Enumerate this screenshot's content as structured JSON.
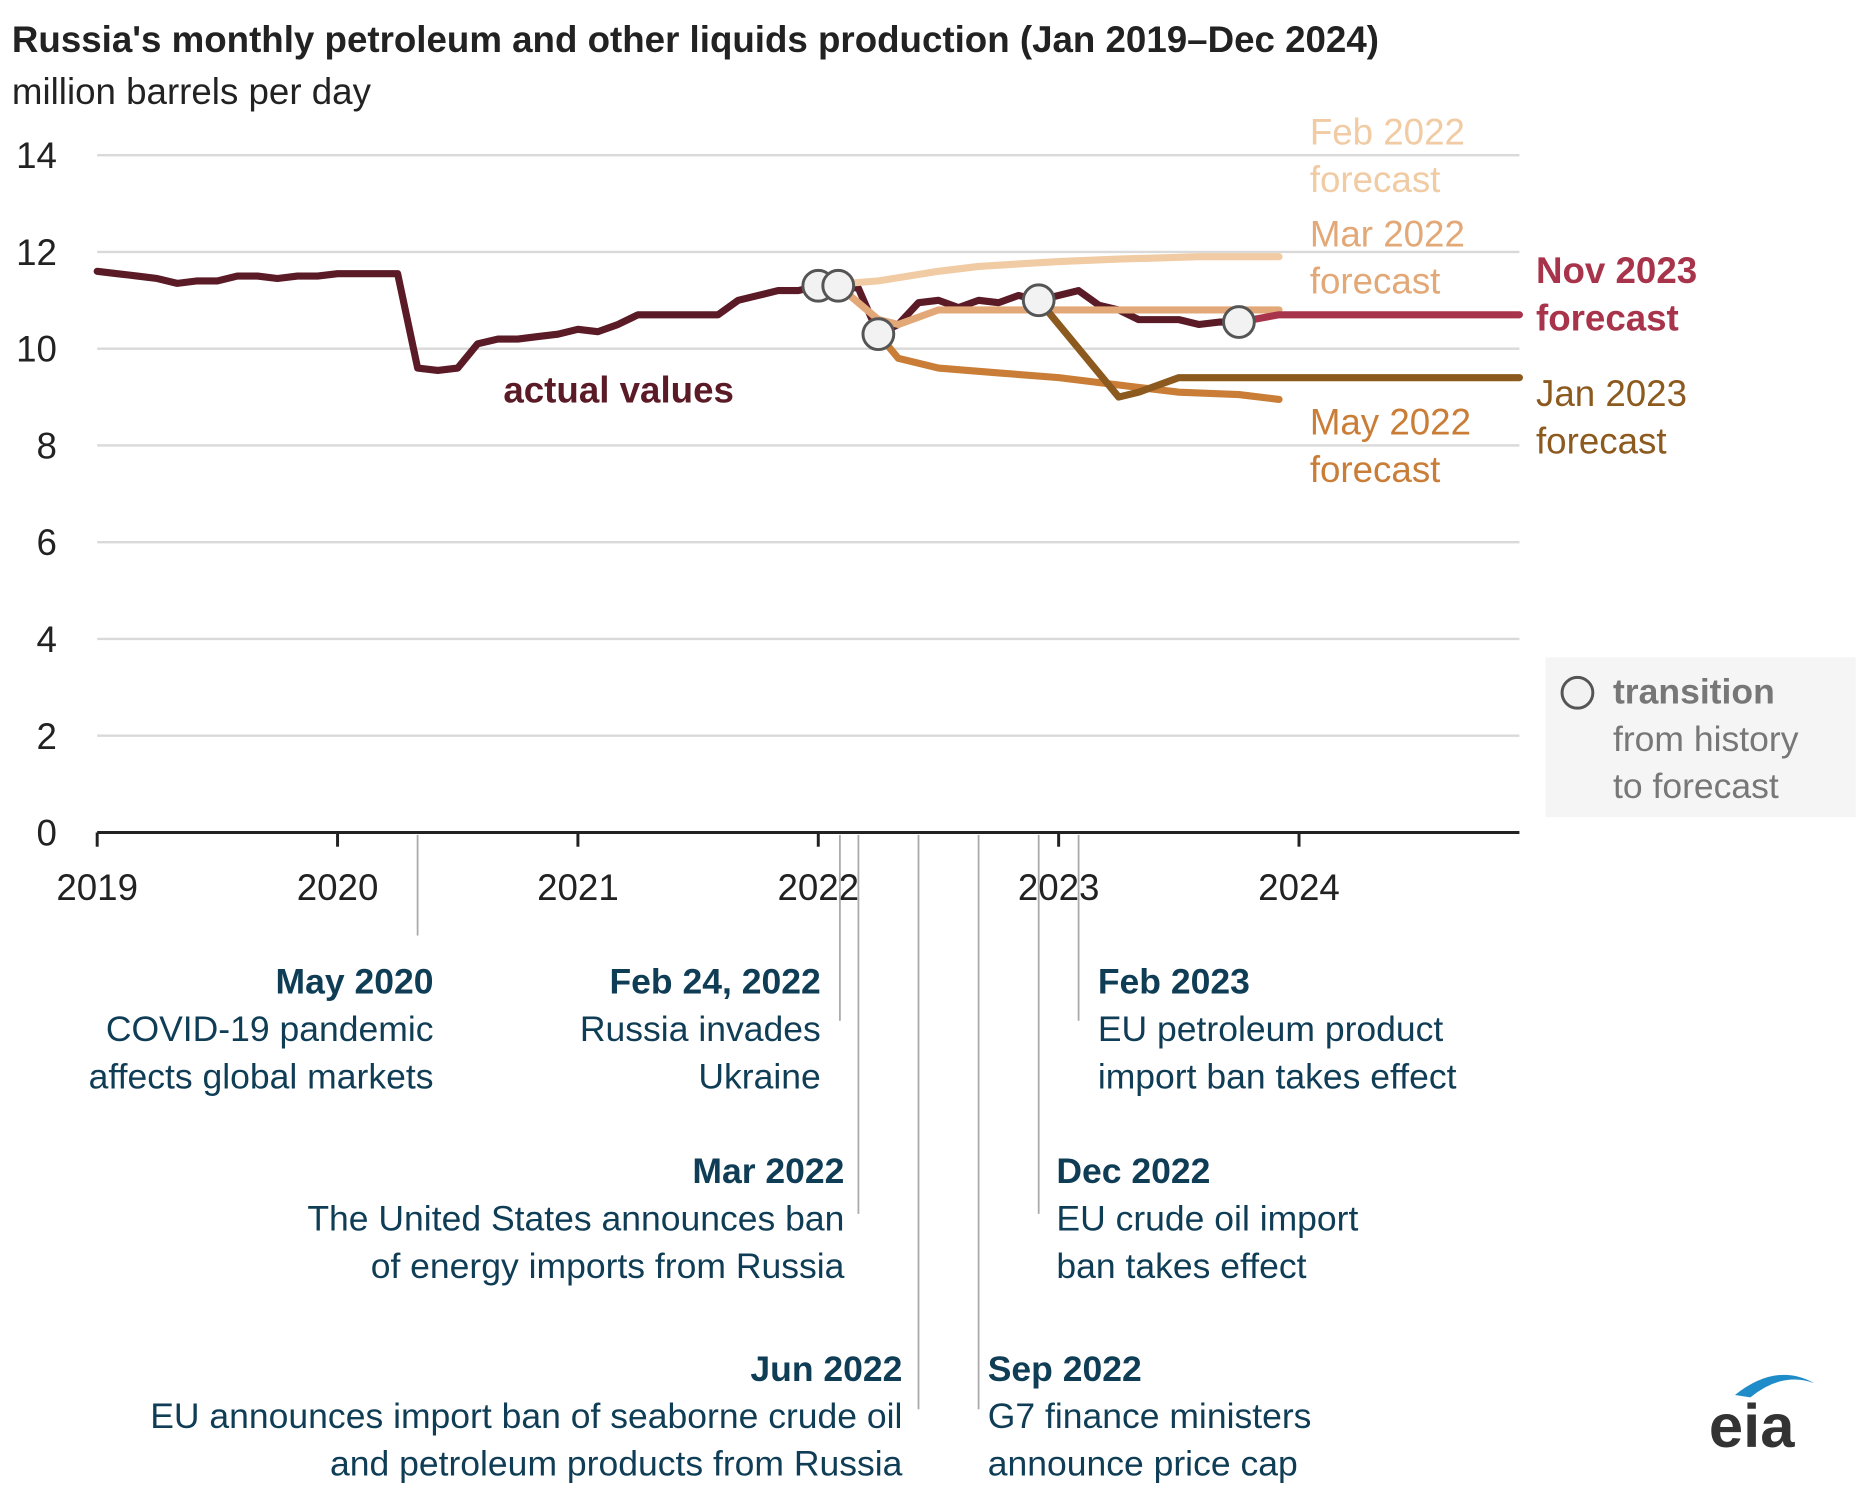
{
  "chart_data": {
    "type": "line",
    "title": "Russia's monthly petroleum and other liquids production (Jan 2019–Dec 2024)",
    "subtitle": "million barrels per day",
    "xlim": [
      2019,
      2024.917
    ],
    "xticks": [
      2019,
      2020,
      2021,
      2022,
      2023,
      2024
    ],
    "ylim": [
      0,
      14
    ],
    "yticks": [
      0,
      2,
      4,
      6,
      8,
      10,
      12,
      14
    ],
    "grid": true,
    "series": [
      {
        "name": "actual values",
        "color": "#5a1a26",
        "x": [
          2019,
          2019.083,
          2019.167,
          2019.25,
          2019.333,
          2019.417,
          2019.5,
          2019.583,
          2019.667,
          2019.75,
          2019.833,
          2019.917,
          2020,
          2020.083,
          2020.167,
          2020.25,
          2020.333,
          2020.417,
          2020.5,
          2020.583,
          2020.667,
          2020.75,
          2020.833,
          2020.917,
          2021,
          2021.083,
          2021.167,
          2021.25,
          2021.333,
          2021.417,
          2021.5,
          2021.583,
          2021.667,
          2021.75,
          2021.833,
          2021.917,
          2022,
          2022.083,
          2022.167,
          2022.25,
          2022.333,
          2022.417,
          2022.5,
          2022.583,
          2022.667,
          2022.75,
          2022.833,
          2022.917,
          2023,
          2023.083,
          2023.167,
          2023.25,
          2023.333,
          2023.417,
          2023.5,
          2023.583,
          2023.667,
          2023.75
        ],
        "values": [
          11.6,
          11.55,
          11.5,
          11.45,
          11.35,
          11.4,
          11.4,
          11.5,
          11.5,
          11.45,
          11.5,
          11.5,
          11.55,
          11.55,
          11.55,
          11.55,
          9.6,
          9.55,
          9.6,
          10.1,
          10.2,
          10.2,
          10.25,
          10.3,
          10.4,
          10.35,
          10.5,
          10.7,
          10.7,
          10.7,
          10.7,
          10.7,
          11.0,
          11.1,
          11.2,
          11.2,
          11.3,
          11.3,
          11.25,
          10.3,
          10.5,
          10.95,
          11.0,
          10.85,
          11.0,
          10.95,
          11.1,
          11.0,
          11.1,
          11.2,
          10.9,
          10.8,
          10.6,
          10.6,
          10.6,
          10.5,
          10.55,
          10.55
        ]
      },
      {
        "name": "Feb 2022 forecast",
        "color": "#f0cba3",
        "x": [
          2022,
          2022.25,
          2022.5,
          2022.667,
          2022.833,
          2023,
          2023.25,
          2023.583,
          2023.917
        ],
        "values": [
          11.3,
          11.4,
          11.6,
          11.7,
          11.75,
          11.8,
          11.85,
          11.9,
          11.9
        ]
      },
      {
        "name": "Mar 2022 forecast",
        "color": "#e2a877",
        "x": [
          2022.083,
          2022.25,
          2022.333,
          2022.5,
          2023.917
        ],
        "values": [
          11.3,
          10.6,
          10.5,
          10.8,
          10.8
        ]
      },
      {
        "name": "May 2022 forecast",
        "color": "#c97d36",
        "x": [
          2022.25,
          2022.333,
          2022.5,
          2022.75,
          2023,
          2023.25,
          2023.5,
          2023.75,
          2023.917
        ],
        "values": [
          10.3,
          9.8,
          9.6,
          9.5,
          9.4,
          9.25,
          9.1,
          9.05,
          8.95
        ]
      },
      {
        "name": "Jan 2023 forecast",
        "color": "#8c5a1f",
        "x": [
          2022.917,
          2023.25,
          2023.333,
          2023.5,
          2024.917
        ],
        "values": [
          11.0,
          9.0,
          9.1,
          9.4,
          9.4
        ]
      },
      {
        "name": "Nov 2023 forecast",
        "color": "#a8344b",
        "x": [
          2023.75,
          2023.917,
          2024.917
        ],
        "values": [
          10.55,
          10.7,
          10.7
        ]
      }
    ],
    "legend": {
      "title": "transition",
      "lines": [
        "from history",
        "to forecast"
      ]
    },
    "events": [
      {
        "x": 2020.333,
        "title": "May 2020",
        "lines": [
          "COVID-19 pandemic",
          "affects global markets"
        ]
      },
      {
        "x": 2022.09,
        "title": "Feb 24, 2022",
        "lines": [
          "Russia invades",
          "Ukraine"
        ]
      },
      {
        "x": 2022.167,
        "title": "Mar 2022",
        "lines": [
          "The United States announces ban",
          "of energy imports from Russia"
        ]
      },
      {
        "x": 2022.417,
        "title": "Jun 2022",
        "lines": [
          "EU announces import ban of seaborne crude oil",
          "and petroleum products from Russia"
        ]
      },
      {
        "x": 2022.667,
        "title": "Sep 2022",
        "lines": [
          "G7 finance ministers",
          "announce price cap"
        ]
      },
      {
        "x": 2022.917,
        "title": "Dec 2022",
        "lines": [
          "EU crude oil import",
          "ban takes effect"
        ]
      },
      {
        "x": 2023.083,
        "title": "Feb 2023",
        "lines": [
          "EU petroleum product",
          "import ban takes effect"
        ]
      }
    ],
    "logo": "eia"
  }
}
